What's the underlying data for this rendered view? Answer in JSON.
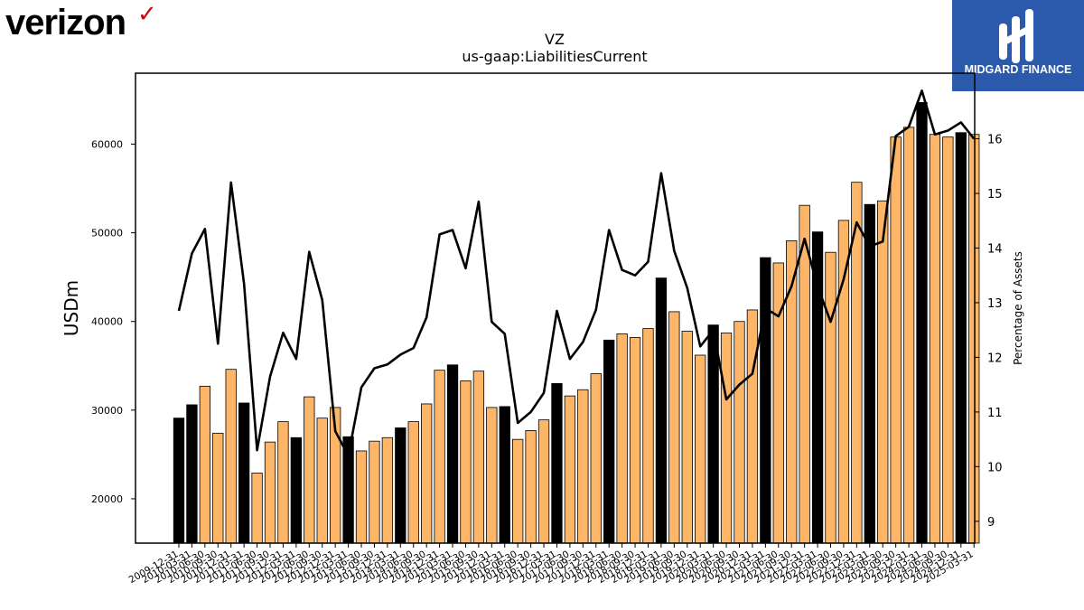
{
  "brand": {
    "company_logo_text": "verizon",
    "company_logo_mark": "✓",
    "company_logo_color": "#000000",
    "company_logo_mark_color": "#cd040b",
    "sponsor_logo_text": "MIDGARD FINANCE",
    "sponsor_bg_color": "#2b5aad"
  },
  "chart_data": {
    "type": "bar",
    "title": "VZ",
    "subtitle": "us-gaap:LiabilitiesCurrent",
    "ylabel": "USDm",
    "y2label": "Percentage of Assets",
    "ylim": [
      15000,
      68000
    ],
    "y2lim": [
      8.6,
      17.2
    ],
    "yticks": [
      20000,
      30000,
      40000,
      50000,
      60000
    ],
    "y2ticks": [
      9,
      10,
      11,
      12,
      13,
      14,
      15,
      16
    ],
    "bar_colors": {
      "annual": "#000000",
      "quarterly": "#fdb567"
    },
    "line_color": "#000000",
    "categories": [
      "2009-12-31",
      "2010-03-31",
      "2010-06-30",
      "2010-09-30",
      "2010-12-31",
      "2011-03-31",
      "2011-06-30",
      "2011-09-30",
      "2011-12-31",
      "2012-03-31",
      "2012-06-30",
      "2012-09-30",
      "2012-12-31",
      "2013-03-31",
      "2013-06-30",
      "2013-09-30",
      "2013-12-31",
      "2014-03-31",
      "2014-06-30",
      "2014-09-30",
      "2014-12-31",
      "2015-03-31",
      "2015-06-30",
      "2015-09-30",
      "2015-12-31",
      "2016-03-31",
      "2016-06-30",
      "2016-09-30",
      "2016-12-31",
      "2017-03-31",
      "2017-06-30",
      "2017-09-30",
      "2017-12-31",
      "2018-03-31",
      "2018-06-30",
      "2018-09-30",
      "2018-12-31",
      "2019-03-31",
      "2019-06-30",
      "2019-09-30",
      "2019-12-31",
      "2020-03-31",
      "2020-06-30",
      "2020-09-30",
      "2020-12-31",
      "2021-03-31",
      "2021-06-30",
      "2021-09-30",
      "2021-12-31",
      "2022-03-31",
      "2022-06-30",
      "2022-09-30",
      "2022-12-31",
      "2023-03-31",
      "2023-06-30",
      "2023-09-30",
      "2023-12-31",
      "2024-03-31",
      "2024-06-30",
      "2024-09-30",
      "2024-12-31",
      "2025-03-31"
    ],
    "annual": [
      true,
      true,
      false,
      false,
      false,
      true,
      false,
      false,
      false,
      true,
      false,
      false,
      false,
      true,
      false,
      false,
      false,
      true,
      false,
      false,
      false,
      true,
      false,
      false,
      false,
      true,
      false,
      false,
      false,
      true,
      false,
      false,
      false,
      true,
      false,
      false,
      false,
      true,
      false,
      false,
      false,
      true,
      false,
      false,
      false,
      true,
      false,
      false,
      false,
      true,
      false,
      false,
      false,
      true,
      false,
      false,
      false,
      true,
      false,
      false,
      true,
      false
    ],
    "series": [
      {
        "name": "LiabilitiesCurrent",
        "type": "bar",
        "values": [
          29100,
          30600,
          32700,
          27400,
          34600,
          30800,
          22900,
          26400,
          28700,
          26900,
          31500,
          29100,
          30300,
          27000,
          25400,
          26500,
          26900,
          28000,
          28700,
          30700,
          34500,
          35100,
          33300,
          34400,
          30300,
          30400,
          26700,
          27700,
          28900,
          33000,
          31600,
          32300,
          34100,
          37900,
          38600,
          38200,
          39200,
          44900,
          41100,
          38900,
          36200,
          39600,
          38700,
          40000,
          41300,
          47200,
          46600,
          49100,
          53100,
          50100,
          47800,
          51400,
          55700,
          53200,
          53600,
          60800,
          61900,
          64700,
          61100,
          60800,
          61300,
          61100
        ]
      },
      {
        "name": "Percentage of Assets",
        "type": "line",
        "values": [
          12.85,
          13.9,
          14.35,
          12.25,
          15.2,
          13.35,
          10.3,
          11.65,
          12.45,
          11.97,
          13.93,
          13.05,
          10.65,
          10.2,
          11.45,
          11.8,
          11.87,
          12.05,
          12.17,
          12.73,
          14.25,
          14.33,
          13.63,
          14.85,
          12.65,
          12.43,
          10.8,
          11.0,
          11.35,
          12.85,
          11.97,
          12.28,
          12.87,
          14.33,
          13.6,
          13.5,
          13.75,
          15.37,
          13.95,
          13.27,
          12.2,
          12.5,
          11.23,
          11.5,
          11.7,
          12.9,
          12.75,
          13.3,
          14.17,
          13.3,
          12.65,
          13.43,
          14.47,
          14.03,
          14.12,
          16.05,
          16.22,
          16.88,
          16.08,
          16.15,
          16.3,
          16.0
        ]
      }
    ]
  }
}
